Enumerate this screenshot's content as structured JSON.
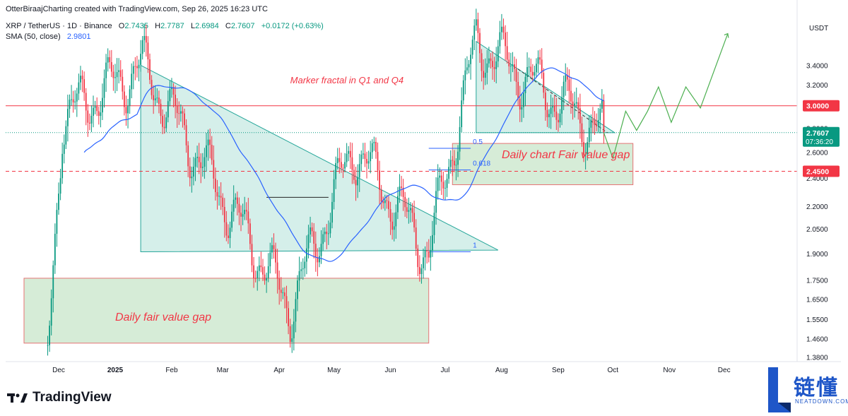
{
  "header": {
    "title": "OtterBiraajCharting created with TradingView.com, Sep 26, 2025 16:23 UTC"
  },
  "legend": {
    "symbol": "XRP / TetherUS · 1D · Binance",
    "o_label": "O",
    "o": "2.7435",
    "h_label": "H",
    "h": "2.7787",
    "l_label": "L",
    "l": "2.6984",
    "c_label": "C",
    "c": "2.7607",
    "change": "+0.0172 (+0.63%)",
    "sma_label": "SMA (50, close)",
    "sma_value": "2.9801"
  },
  "annotations": {
    "fractal": "Marker fractal in Q1 and Q4",
    "fvg_daily_chart": "Daily chart Fair value gap",
    "fvg_daily": "Daily fair value gap",
    "fib_05": "0.5",
    "fib_0618": "0.618",
    "fib_1": "1"
  },
  "brand": {
    "name": "TradingView"
  },
  "watermark": {
    "cn": "链懂",
    "en": "NEATDOWN.COM"
  },
  "colors": {
    "up": "#089981",
    "down": "#f23645",
    "sma": "#2962ff",
    "triangle_fill": "#bfe6de",
    "triangle_stroke": "#26a69a",
    "fvg_fill": "#c8e6c9",
    "fvg_stroke": "#e57373",
    "projection": "#4caf50",
    "level": "#f23645"
  },
  "chart_data": {
    "type": "candlestick",
    "title": "XRP / TetherUS · 1D · Binance",
    "currency": "USDT",
    "scale": "log",
    "ylim": [
      1.36,
      4.0
    ],
    "y_ticks": [
      "3.4000",
      "3.2000",
      "2.8000",
      "2.6000",
      "2.4000",
      "2.2000",
      "2.0500",
      "1.9000",
      "1.7500",
      "1.6500",
      "1.5500",
      "1.4600",
      "1.3800"
    ],
    "x_ticks": [
      "Dec",
      "2025",
      "Feb",
      "Mar",
      "Apr",
      "May",
      "Jun",
      "Jul",
      "Aug",
      "Sep",
      "Oct",
      "Nov",
      "Dec"
    ],
    "price_labels": [
      {
        "text": "3.0000",
        "value": 3.0,
        "color": "#f23645"
      },
      {
        "text": "2.7607",
        "value": 2.7607,
        "color": "#089981"
      },
      {
        "text": "07:36:20",
        "value": 2.7607,
        "color": "#089981"
      },
      {
        "text": "2.4500",
        "value": 2.45,
        "color": "#f23645"
      }
    ],
    "horizontal_levels": [
      {
        "value": 3.0,
        "style": "solid"
      },
      {
        "value": 2.45,
        "style": "dashed"
      },
      {
        "value": 2.7607,
        "style": "dotted"
      }
    ],
    "key_points": [
      {
        "date": "2024-11-25",
        "price": 1.38
      },
      {
        "date": "2024-12-03",
        "price": 2.9
      },
      {
        "date": "2025-01-16",
        "price": 3.4
      },
      {
        "date": "2025-04-07",
        "price": 1.61
      },
      {
        "date": "2025-05-12",
        "price": 2.65
      },
      {
        "date": "2025-06-22",
        "price": 1.91
      },
      {
        "date": "2025-07-18",
        "price": 3.66
      },
      {
        "date": "2025-09-26",
        "price": 2.7607
      }
    ],
    "sma_period": 50,
    "sma_last": 2.9801,
    "last_close": 2.7607
  }
}
